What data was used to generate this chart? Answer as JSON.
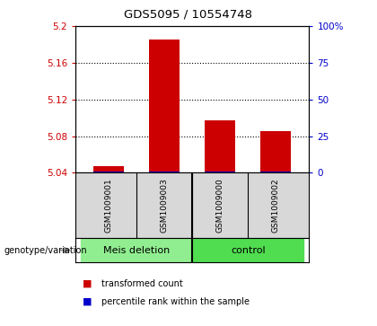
{
  "title": "GDS5095 / 10554748",
  "samples": [
    "GSM1009001",
    "GSM1009003",
    "GSM1009000",
    "GSM1009002"
  ],
  "red_values": [
    5.047,
    5.185,
    5.097,
    5.085
  ],
  "baseline": 5.04,
  "ylim": [
    5.04,
    5.2
  ],
  "y_ticks_left": [
    5.04,
    5.08,
    5.12,
    5.16,
    5.2
  ],
  "y_ticks_right": [
    0,
    25,
    50,
    75,
    100
  ],
  "right_ytick_labels": [
    "0",
    "25",
    "50",
    "75",
    "100%"
  ],
  "groups": [
    {
      "label": "Meis deletion",
      "x_start": -0.5,
      "x_end": 1.5,
      "color": "#90EE90"
    },
    {
      "label": "control",
      "x_start": 1.5,
      "x_end": 3.5,
      "color": "#50DD50"
    }
  ],
  "group_label": "genotype/variation",
  "legend_items": [
    {
      "color": "#CC0000",
      "label": "transformed count"
    },
    {
      "color": "#0000CC",
      "label": "percentile rank within the sample"
    }
  ],
  "bar_width": 0.55,
  "left_ytick_color": "#CC0000",
  "right_ytick_color": "#0000CC",
  "sample_bg_color": "#d8d8d8",
  "plot_bg_color": "#ffffff",
  "blue_bar_height": 0.0015,
  "grid_dotted_ticks": [
    5.08,
    5.12,
    5.16
  ],
  "xlim": [
    -0.6,
    3.6
  ]
}
